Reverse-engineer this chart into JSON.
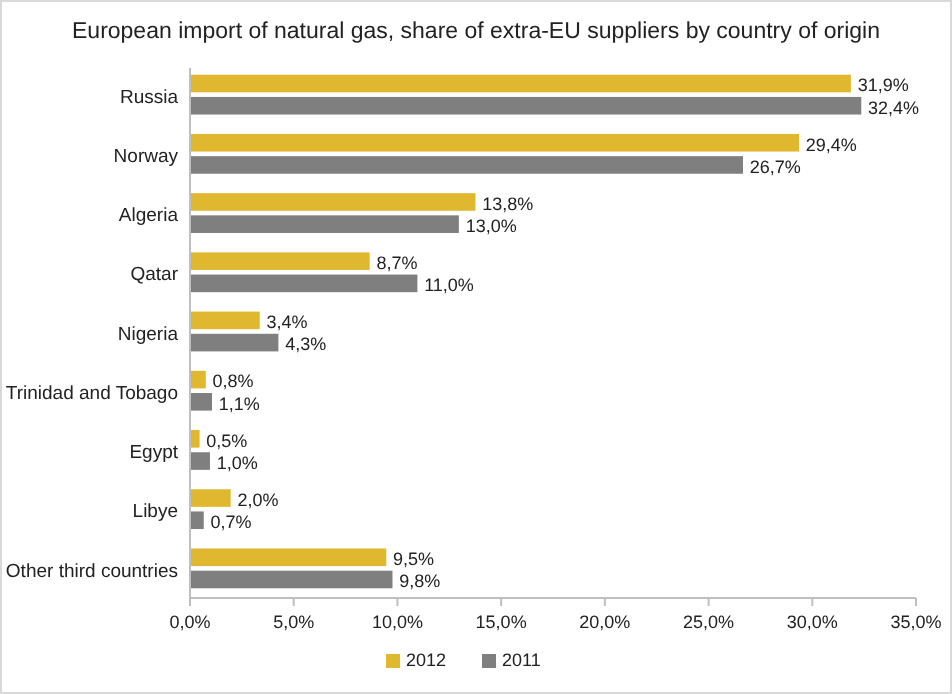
{
  "chart_data": {
    "type": "bar",
    "orientation": "horizontal",
    "title": "European import of natural gas, share of extra-EU suppliers by country of origin",
    "categories": [
      "Russia",
      "Norway",
      "Algeria",
      "Qatar",
      "Nigeria",
      "Trinidad and Tobago",
      "Egypt",
      "Libye",
      "Other third countries"
    ],
    "series": [
      {
        "name": "2012",
        "color": "#e0b830",
        "values": [
          31.9,
          29.4,
          13.8,
          8.7,
          3.4,
          0.8,
          0.5,
          2.0,
          9.5
        ],
        "value_labels": [
          "31,9%",
          "29,4%",
          "13,8%",
          "8,7%",
          "3,4%",
          "0,8%",
          "0,5%",
          "2,0%",
          "9,5%"
        ]
      },
      {
        "name": "2011",
        "color": "#7f7f7f",
        "values": [
          32.4,
          26.7,
          13.0,
          11.0,
          4.3,
          1.1,
          1.0,
          0.7,
          9.8
        ],
        "value_labels": [
          "32,4%",
          "26,7%",
          "13,0%",
          "11,0%",
          "4,3%",
          "1,1%",
          "1,0%",
          "0,7%",
          "9,8%"
        ]
      }
    ],
    "xlim": [
      0,
      35
    ],
    "xticks": [
      {
        "value": 0,
        "label": "0,0%"
      },
      {
        "value": 5,
        "label": "5,0%"
      },
      {
        "value": 10,
        "label": "10,0%"
      },
      {
        "value": 15,
        "label": "15,0%"
      },
      {
        "value": 20,
        "label": "20,0%"
      },
      {
        "value": 25,
        "label": "25,0%"
      },
      {
        "value": 30,
        "label": "30,0%"
      },
      {
        "value": 35,
        "label": "35,0%"
      }
    ],
    "legend": "bottom",
    "grid": false
  }
}
